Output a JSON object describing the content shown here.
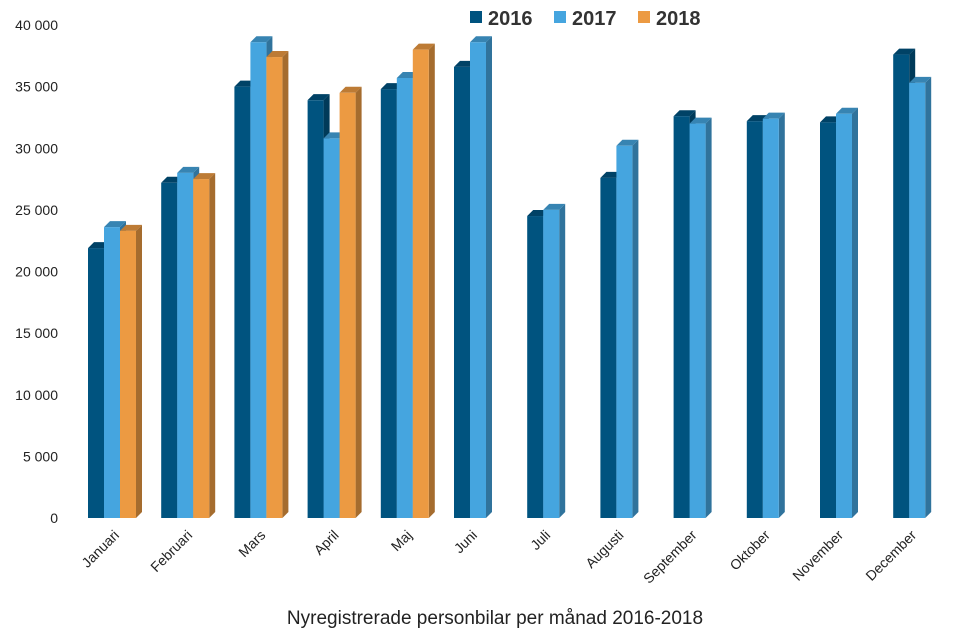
{
  "chart_data": {
    "type": "bar",
    "title": "Nyregistrerade personbilar per månad 2016-2018",
    "xlabel": "",
    "ylabel": "",
    "ylim": [
      0,
      40000
    ],
    "yticks": [
      "0",
      "5 000",
      "10 000",
      "15 000",
      "20 000",
      "25 000",
      "30 000",
      "35 000",
      "40 000"
    ],
    "legend_position": "top",
    "grid": false,
    "categories": [
      "Januari",
      "Februari",
      "Mars",
      "April",
      "Maj",
      "Juni",
      "Juli",
      "Augusti",
      "September",
      "Oktober",
      "November",
      "December"
    ],
    "series": [
      {
        "name": "2016",
        "color": "#00537f",
        "values": [
          21900,
          27200,
          35000,
          33900,
          34800,
          36600,
          24500,
          27600,
          32600,
          32200,
          32100,
          37600
        ]
      },
      {
        "name": "2017",
        "color": "#45a5df",
        "values": [
          23600,
          28000,
          38600,
          30800,
          35700,
          38600,
          25000,
          30200,
          32000,
          32400,
          32800,
          35300
        ]
      },
      {
        "name": "2018",
        "color": "#ec9a42",
        "values": [
          23300,
          27500,
          37400,
          34500,
          38000,
          null,
          null,
          null,
          null,
          null,
          null,
          null
        ]
      }
    ]
  }
}
